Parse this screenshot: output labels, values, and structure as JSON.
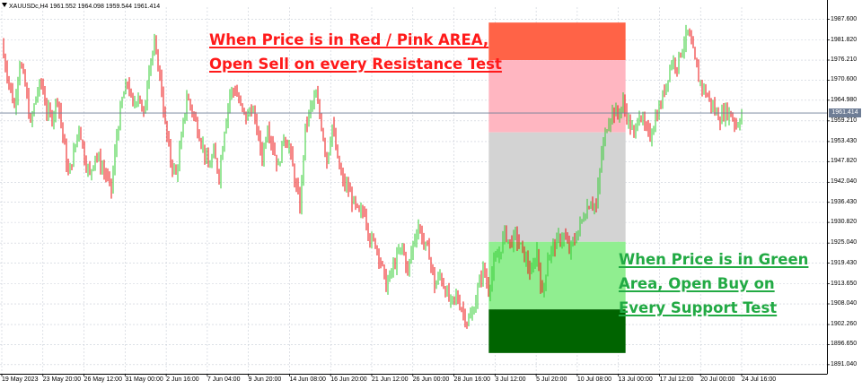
{
  "header": {
    "symbol_line": "XAUUSDc,H4  1961.552 1964.098 1959.544 1961.414"
  },
  "annotations": {
    "sell_line1": "When Price is in Red / Pink AREA,",
    "sell_line2": "Open Sell on every Resistance Test",
    "buy_line1": "When Price is in Green",
    "buy_line2": "Area, Open Buy on",
    "buy_line3": "Every Support Test"
  },
  "current_price": "1961.414",
  "colors": {
    "bull": "#33cc33",
    "bear": "#ee1111",
    "zone_red": "#ff6347",
    "zone_pink": "#ffb6c1",
    "zone_gray": "#d3d3d3",
    "zone_lightgreen": "#90ee90",
    "zone_darkgreen": "#006400",
    "grid": "#c8cdd7",
    "price_line": "#6e7d95"
  },
  "chart_data": {
    "type": "candlestick",
    "symbol": "XAUUSDc",
    "timeframe": "H4",
    "ylim": [
      1890.5,
      1991.0
    ],
    "y_ticks": [
      "1987.600",
      "1981.820",
      "1976.210",
      "1970.600",
      "1964.980",
      "1959.210",
      "1953.430",
      "1947.820",
      "1942.040",
      "1936.430",
      "1930.820",
      "1925.040",
      "1919.430",
      "1913.650",
      "1908.040",
      "1902.260",
      "1896.650",
      "1891.040"
    ],
    "x_ticks": [
      "19 May 2023",
      "23 May 20:00",
      "26 May 12:00",
      "31 May 00:00",
      "2 Jun 16:00",
      "7 Jun 04:00",
      "9 Jun 20:00",
      "14 Jun 08:00",
      "16 Jun 20:00",
      "21 Jun 12:00",
      "26 Jun 00:00",
      "28 Jun 16:00",
      "3 Jul 12:00",
      "5 Jul 20:00",
      "10 Jul 08:00",
      "13 Jul 00:00",
      "17 Jul 12:00",
      "20 Jul 00:00",
      "24 Jul 16:00"
    ],
    "price_zones": [
      {
        "name": "red",
        "from": 1976.2,
        "to": 1986.7
      },
      {
        "name": "pink",
        "from": 1956.0,
        "to": 1976.2
      },
      {
        "name": "gray",
        "from": 1925.4,
        "to": 1956.0
      },
      {
        "name": "lightgreen",
        "from": 1906.5,
        "to": 1925.4
      },
      {
        "name": "darkgreen",
        "from": 1894.3,
        "to": 1906.5
      }
    ],
    "zone_period": [
      "3 Jul 12:00",
      "13 Jul 00:00"
    ],
    "current_price": 1961.414,
    "close_path": [
      [
        0,
        1981
      ],
      [
        5,
        1976
      ],
      [
        10,
        1970
      ],
      [
        16,
        1963
      ],
      [
        22,
        1976
      ],
      [
        28,
        1969
      ],
      [
        34,
        1958
      ],
      [
        40,
        1966
      ],
      [
        46,
        1970
      ],
      [
        52,
        1962
      ],
      [
        58,
        1960
      ],
      [
        64,
        1966
      ],
      [
        70,
        1955
      ],
      [
        76,
        1944
      ],
      [
        82,
        1950
      ],
      [
        88,
        1958
      ],
      [
        94,
        1949
      ],
      [
        100,
        1944
      ],
      [
        106,
        1950
      ],
      [
        112,
        1947
      ],
      [
        118,
        1944
      ],
      [
        124,
        1940
      ],
      [
        130,
        1955
      ],
      [
        136,
        1965
      ],
      [
        142,
        1970
      ],
      [
        148,
        1963
      ],
      [
        154,
        1967
      ],
      [
        160,
        1960
      ],
      [
        166,
        1975
      ],
      [
        172,
        1980
      ],
      [
        178,
        1972
      ],
      [
        184,
        1958
      ],
      [
        190,
        1948
      ],
      [
        196,
        1944
      ],
      [
        202,
        1954
      ],
      [
        208,
        1966
      ],
      [
        214,
        1962
      ],
      [
        220,
        1957
      ],
      [
        226,
        1952
      ],
      [
        232,
        1946
      ],
      [
        238,
        1950
      ],
      [
        244,
        1944
      ],
      [
        250,
        1957
      ],
      [
        256,
        1967
      ],
      [
        262,
        1968
      ],
      [
        268,
        1963
      ],
      [
        274,
        1960
      ],
      [
        280,
        1963
      ],
      [
        286,
        1957
      ],
      [
        292,
        1949
      ],
      [
        298,
        1958
      ],
      [
        304,
        1952
      ],
      [
        310,
        1946
      ],
      [
        316,
        1955
      ],
      [
        322,
        1952
      ],
      [
        328,
        1943
      ],
      [
        334,
        1935
      ],
      [
        340,
        1957
      ],
      [
        346,
        1963
      ],
      [
        352,
        1966
      ],
      [
        358,
        1958
      ],
      [
        364,
        1948
      ],
      [
        370,
        1958
      ],
      [
        376,
        1948
      ],
      [
        382,
        1942
      ],
      [
        388,
        1940
      ],
      [
        394,
        1936
      ],
      [
        400,
        1933
      ],
      [
        406,
        1934
      ],
      [
        412,
        1926
      ],
      [
        418,
        1925
      ],
      [
        424,
        1920
      ],
      [
        430,
        1913
      ],
      [
        436,
        1917
      ],
      [
        442,
        1921
      ],
      [
        448,
        1924
      ],
      [
        454,
        1917
      ],
      [
        460,
        1925
      ],
      [
        466,
        1930
      ],
      [
        472,
        1925
      ],
      [
        478,
        1922
      ],
      [
        484,
        1913
      ],
      [
        490,
        1916
      ],
      [
        496,
        1912
      ],
      [
        502,
        1908
      ],
      [
        508,
        1910
      ],
      [
        514,
        1907
      ],
      [
        520,
        1903
      ],
      [
        526,
        1905
      ],
      [
        532,
        1912
      ],
      [
        538,
        1918
      ],
      [
        544,
        1912
      ],
      [
        550,
        1919
      ],
      [
        556,
        1922
      ],
      [
        562,
        1928
      ],
      [
        568,
        1925
      ],
      [
        574,
        1927
      ],
      [
        580,
        1924
      ],
      [
        586,
        1920
      ],
      [
        592,
        1916
      ],
      [
        598,
        1923
      ],
      [
        604,
        1910
      ],
      [
        610,
        1921
      ],
      [
        616,
        1924
      ],
      [
        622,
        1926
      ],
      [
        628,
        1927
      ],
      [
        634,
        1923
      ],
      [
        640,
        1926
      ],
      [
        646,
        1930
      ],
      [
        652,
        1934
      ],
      [
        658,
        1937
      ],
      [
        664,
        1935
      ],
      [
        670,
        1950
      ],
      [
        676,
        1958
      ],
      [
        682,
        1962
      ],
      [
        688,
        1961
      ],
      [
        694,
        1964
      ],
      [
        700,
        1959
      ],
      [
        706,
        1955
      ],
      [
        712,
        1962
      ],
      [
        718,
        1957
      ],
      [
        724,
        1955
      ],
      [
        730,
        1960
      ],
      [
        736,
        1964
      ],
      [
        742,
        1970
      ],
      [
        748,
        1976
      ],
      [
        754,
        1975
      ],
      [
        760,
        1980
      ],
      [
        766,
        1984
      ],
      [
        772,
        1978
      ],
      [
        778,
        1971
      ],
      [
        784,
        1968
      ],
      [
        790,
        1965
      ],
      [
        796,
        1962
      ],
      [
        802,
        1960
      ],
      [
        808,
        1962
      ],
      [
        814,
        1961
      ],
      [
        820,
        1958
      ],
      [
        826,
        1961
      ]
    ]
  }
}
